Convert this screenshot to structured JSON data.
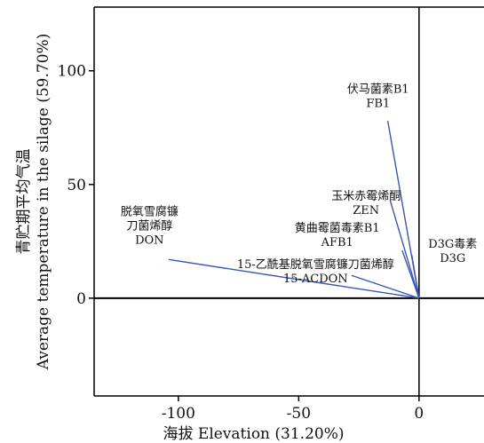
{
  "chart_data": {
    "type": "biplot",
    "xlabel": "海拔 Elevation (31.20%)",
    "ylabel_lines": [
      "青贮期平均气温",
      "Average temperature in the silage (59.70%)"
    ],
    "xlim": [
      -135,
      27
    ],
    "ylim": [
      -43,
      128
    ],
    "x_ticks": [
      -100,
      -50,
      0
    ],
    "y_ticks": [
      0,
      50,
      100
    ],
    "x_tick_labels": [
      "-100",
      "-50",
      "0"
    ],
    "y_tick_labels": [
      "0",
      "50",
      "100"
    ],
    "origin": [
      0,
      0
    ],
    "line_color": "#3a55b4",
    "vectors": [
      {
        "id": "fb1",
        "label_lines": [
          "伏马菌素B1",
          "FB1"
        ],
        "x": -13,
        "y": 78,
        "label_x": -17,
        "label_y": 84,
        "anchor": "middle"
      },
      {
        "id": "zen",
        "label_lines": [
          "玉米赤霉烯酮",
          "ZEN"
        ],
        "x": -12,
        "y": 43,
        "label_x": -22,
        "label_y": 37,
        "anchor": "middle"
      },
      {
        "id": "afb1",
        "label_lines": [
          "黄曲霉菌毒素B1",
          "AFB1"
        ],
        "x": -7,
        "y": 21,
        "label_x": -34,
        "label_y": 23,
        "anchor": "middle"
      },
      {
        "id": "d3g",
        "label_lines": [
          "D3G毒素",
          "D3G"
        ],
        "x": -3,
        "y": 19,
        "label_x": 14,
        "label_y": 16,
        "anchor": "middle"
      },
      {
        "id": "acdon",
        "label_lines": [
          "15-乙酰基脱氧雪腐镰刀菌烯醇",
          "15-ACDON"
        ],
        "x": -28,
        "y": 10,
        "label_x": -43,
        "label_y": 7,
        "anchor": "middle"
      },
      {
        "id": "don",
        "label_lines": [
          "脱氧雪腐镰",
          "刀菌烯醇",
          "DON"
        ],
        "x": -104,
        "y": 17,
        "label_x": -112,
        "label_y": 24,
        "anchor": "middle"
      }
    ]
  }
}
